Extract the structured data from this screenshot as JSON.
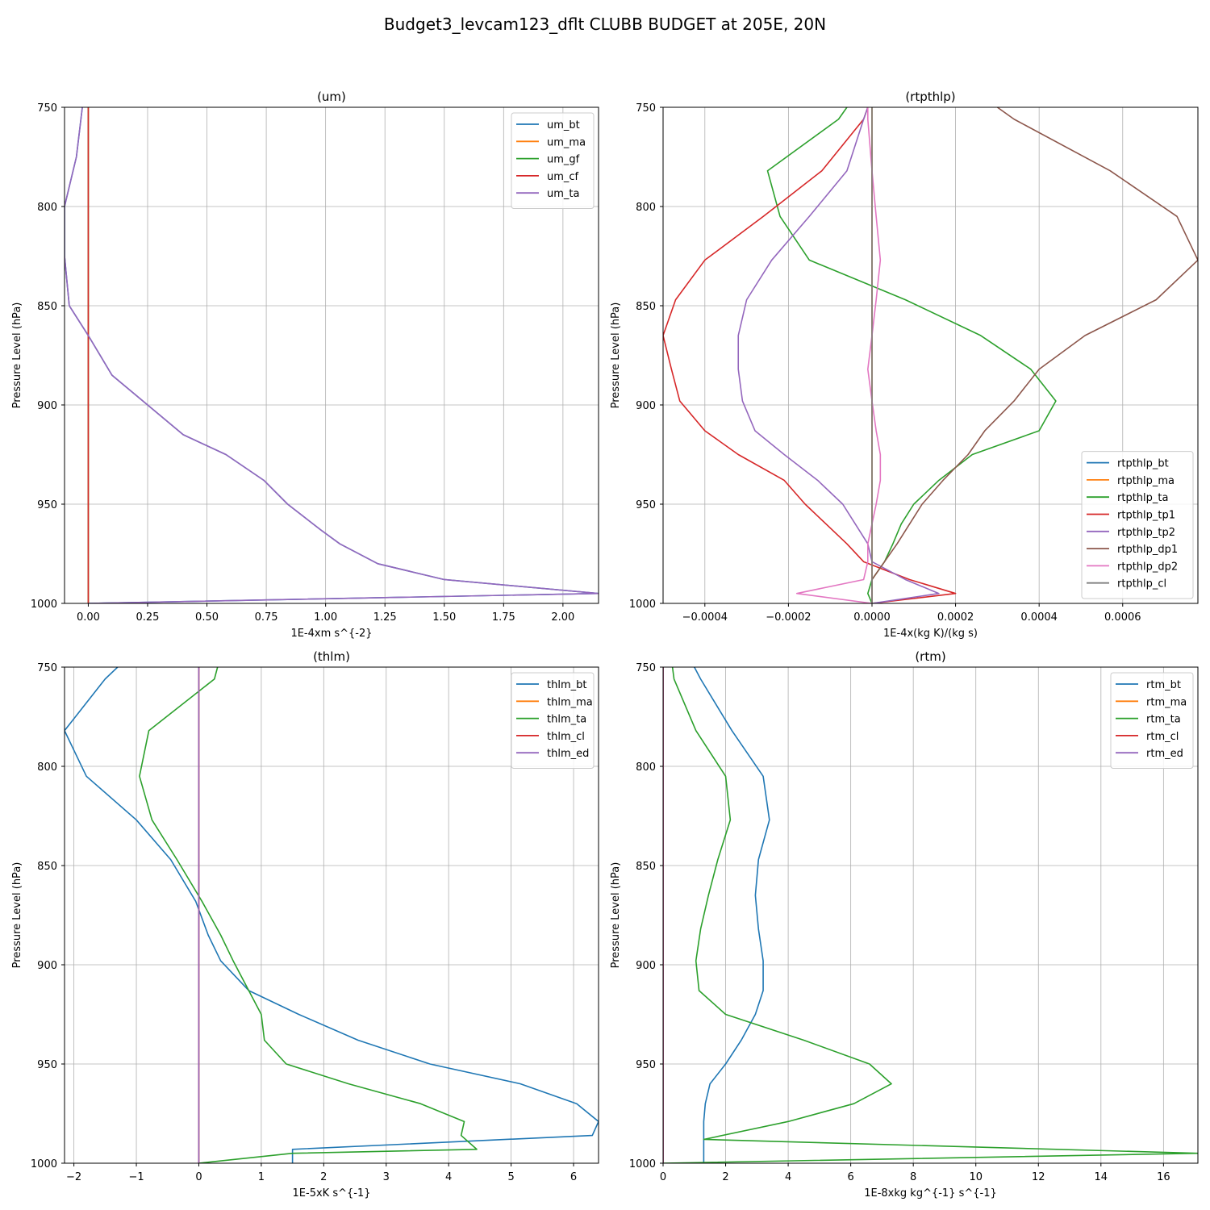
{
  "suptitle": "Budget3_levcam123_dflt CLUBB BUDGET at 205E, 20N",
  "chart_data": [
    {
      "type": "line",
      "title": "(um)",
      "xlabel": "1E-4xm s^{-2}",
      "ylabel": "Pressure Level (hPa)",
      "xlim": [
        -0.1,
        2.15
      ],
      "ylim": [
        1000,
        750
      ],
      "xticks": [
        0.0,
        0.25,
        0.5,
        0.75,
        1.0,
        1.25,
        1.5,
        1.75,
        2.0
      ],
      "xtick_labels": [
        "0.00",
        "0.25",
        "0.50",
        "0.75",
        "1.00",
        "1.25",
        "1.50",
        "1.75",
        "2.00"
      ],
      "yticks": [
        750,
        800,
        850,
        900,
        950,
        1000
      ],
      "grid": true,
      "legend_position": "top-right",
      "levels": [
        745,
        775,
        800,
        825,
        850,
        865,
        885,
        900,
        915,
        925,
        938,
        950,
        963,
        970,
        980,
        988,
        995,
        1000
      ],
      "series": [
        {
          "name": "um_bt",
          "color": "#1f77b4",
          "values": [
            -0.02,
            -0.05,
            -0.1,
            -0.1,
            -0.08,
            0.0,
            0.1,
            0.25,
            0.4,
            0.58,
            0.74,
            0.84,
            0.98,
            1.06,
            1.22,
            1.5,
            2.15,
            0.0
          ]
        },
        {
          "name": "um_ma",
          "color": "#ff7f0e",
          "values": [
            0,
            0,
            0,
            0,
            0,
            0,
            0,
            0,
            0,
            0,
            0,
            0,
            0,
            0,
            0,
            0,
            0,
            0
          ]
        },
        {
          "name": "um_gf",
          "color": "#2ca02c",
          "values": [
            0,
            0,
            0,
            0,
            0,
            0,
            0,
            0,
            0,
            0,
            0,
            0,
            0,
            0,
            0,
            0,
            0,
            0
          ]
        },
        {
          "name": "um_cf",
          "color": "#d62728",
          "values": [
            0,
            0,
            0,
            0,
            0,
            0,
            0,
            0,
            0,
            0,
            0,
            0,
            0,
            0,
            0,
            0,
            0,
            0
          ]
        },
        {
          "name": "um_ta",
          "color": "#9467bd",
          "values": [
            -0.02,
            -0.05,
            -0.1,
            -0.1,
            -0.08,
            0.0,
            0.1,
            0.25,
            0.4,
            0.58,
            0.74,
            0.84,
            0.98,
            1.06,
            1.22,
            1.5,
            2.15,
            0.0
          ]
        }
      ]
    },
    {
      "type": "line",
      "title": "(rtpthlp)",
      "xlabel": "1E-4x(kg K)/(kg s)",
      "ylabel": "Pressure Level (hPa)",
      "xlim": [
        -0.0005,
        0.00078
      ],
      "ylim": [
        1000,
        750
      ],
      "xticks": [
        -0.0004,
        -0.0002,
        0.0,
        0.0002,
        0.0004,
        0.0006
      ],
      "xtick_labels": [
        "−0.0004",
        "−0.0002",
        "0.0000",
        "0.0002",
        "0.0004",
        "0.0006"
      ],
      "yticks": [
        750,
        800,
        850,
        900,
        950,
        1000
      ],
      "grid": true,
      "legend_position": "bottom-right",
      "levels": [
        750,
        756,
        782,
        805,
        827,
        847,
        865,
        882,
        898,
        913,
        925,
        938,
        950,
        960,
        970,
        979,
        988,
        995,
        1000
      ],
      "series": [
        {
          "name": "rtpthlp_bt",
          "color": "#1f77b4",
          "values": [
            0,
            0,
            0,
            0,
            0,
            0,
            0,
            0,
            0,
            0,
            0,
            0,
            0,
            0,
            0,
            0,
            0,
            0,
            0
          ]
        },
        {
          "name": "rtpthlp_ma",
          "color": "#ff7f0e",
          "values": [
            0,
            0,
            0,
            0,
            0,
            0,
            0,
            0,
            0,
            0,
            0,
            0,
            0,
            0,
            0,
            0,
            0,
            0,
            0
          ]
        },
        {
          "name": "rtpthlp_ta",
          "color": "#2ca02c",
          "values": [
            -6e-05,
            -8e-05,
            -0.00025,
            -0.00022,
            -0.00015,
            8e-05,
            0.00026,
            0.00038,
            0.00044,
            0.0004,
            0.00024,
            0.00016,
            0.0001,
            7e-05,
            5e-05,
            3e-05,
            0.0,
            -1e-05,
            0.0
          ]
        },
        {
          "name": "rtpthlp_tp1",
          "color": "#d62728",
          "values": [
            -1e-05,
            -2e-05,
            -0.00012,
            -0.00026,
            -0.0004,
            -0.00047,
            -0.0005,
            -0.00048,
            -0.00046,
            -0.0004,
            -0.00032,
            -0.00021,
            -0.00016,
            -0.00011,
            -6e-05,
            -2e-05,
            9e-05,
            0.0002,
            0.0
          ]
        },
        {
          "name": "rtpthlp_tp2",
          "color": "#9467bd",
          "values": [
            -1e-05,
            -2e-05,
            -6e-05,
            -0.00015,
            -0.00024,
            -0.0003,
            -0.00032,
            -0.00032,
            -0.00031,
            -0.00028,
            -0.00021,
            -0.00013,
            -7e-05,
            -4e-05,
            -1e-05,
            0.0,
            8e-05,
            0.00016,
            0.0
          ]
        },
        {
          "name": "rtpthlp_dp1",
          "color": "#8c564b",
          "values": [
            0.0003,
            0.00034,
            0.00057,
            0.00073,
            0.00078,
            0.00068,
            0.00051,
            0.0004,
            0.00034,
            0.00027,
            0.00023,
            0.00017,
            0.00012,
            9e-05,
            6e-05,
            3e-05,
            0.0,
            0.0,
            0.0
          ]
        },
        {
          "name": "rtpthlp_dp2",
          "color": "#e377c2",
          "values": [
            -1e-05,
            -1e-05,
            0.0,
            1e-05,
            2e-05,
            1e-05,
            0.0,
            -1e-05,
            0.0,
            1e-05,
            2e-05,
            2e-05,
            1e-05,
            0.0,
            -1e-05,
            -1e-05,
            -2e-05,
            -0.00018,
            0.0
          ]
        },
        {
          "name": "rtpthlp_cl",
          "color": "#7f7f7f",
          "values": [
            0,
            0,
            0,
            0,
            0,
            0,
            0,
            0,
            0,
            0,
            0,
            0,
            0,
            0,
            0,
            0,
            0,
            0,
            0
          ]
        }
      ]
    },
    {
      "type": "line",
      "title": "(thlm)",
      "xlabel": "1E-5xK s^{-1}",
      "ylabel": "Pressure Level (hPa)",
      "xlim": [
        -2.15,
        6.4
      ],
      "ylim": [
        1000,
        750
      ],
      "xticks": [
        -2,
        -1,
        0,
        1,
        2,
        3,
        4,
        5,
        6
      ],
      "xtick_labels": [
        "−2",
        "−1",
        "0",
        "1",
        "2",
        "3",
        "4",
        "5",
        "6"
      ],
      "yticks": [
        750,
        800,
        850,
        900,
        950,
        1000
      ],
      "grid": true,
      "legend_position": "top-right",
      "levels": [
        750,
        756,
        782,
        805,
        827,
        847,
        868,
        885,
        898,
        913,
        925,
        938,
        950,
        960,
        970,
        979,
        986,
        993,
        995,
        1000
      ],
      "series": [
        {
          "name": "thlm_bt",
          "color": "#1f77b4",
          "values": [
            -1.3,
            -1.5,
            -2.15,
            -1.8,
            -1.0,
            -0.45,
            -0.05,
            0.15,
            0.35,
            0.8,
            1.6,
            2.55,
            3.7,
            5.15,
            6.05,
            6.4,
            6.3,
            1.5,
            1.5,
            1.5
          ]
        },
        {
          "name": "thlm_ma",
          "color": "#ff7f0e",
          "values": [
            0,
            0,
            0,
            0,
            0,
            0,
            0,
            0,
            0,
            0,
            0,
            0,
            0,
            0,
            0,
            0,
            0,
            0,
            0,
            0
          ]
        },
        {
          "name": "thlm_ta",
          "color": "#2ca02c",
          "values": [
            0.3,
            0.25,
            -0.8,
            -0.95,
            -0.75,
            -0.35,
            0.05,
            0.35,
            0.55,
            0.8,
            1.0,
            1.05,
            1.4,
            2.4,
            3.55,
            4.25,
            4.2,
            4.45,
            1.5,
            0.0
          ]
        },
        {
          "name": "thlm_cl",
          "color": "#d62728",
          "values": [
            0,
            0,
            0,
            0,
            0,
            0,
            0,
            0,
            0,
            0,
            0,
            0,
            0,
            0,
            0,
            0,
            0,
            0,
            0,
            0
          ]
        },
        {
          "name": "thlm_ed",
          "color": "#9467bd",
          "values": [
            0,
            0,
            0,
            0,
            0,
            0,
            0,
            0,
            0,
            0,
            0,
            0,
            0,
            0,
            0,
            0,
            0,
            0,
            0,
            0
          ]
        }
      ]
    },
    {
      "type": "line",
      "title": "(rtm)",
      "xlabel": "1E-8xkg kg^{-1} s^{-1}",
      "ylabel": "Pressure Level (hPa)",
      "xlim": [
        0,
        17.1
      ],
      "ylim": [
        1000,
        750
      ],
      "xticks": [
        0,
        2,
        4,
        6,
        8,
        10,
        12,
        14,
        16
      ],
      "xtick_labels": [
        "0",
        "2",
        "4",
        "6",
        "8",
        "10",
        "12",
        "14",
        "16"
      ],
      "yticks": [
        750,
        800,
        850,
        900,
        950,
        1000
      ],
      "grid": true,
      "legend_position": "top-right",
      "levels": [
        750,
        756,
        782,
        805,
        827,
        847,
        865,
        882,
        898,
        913,
        925,
        938,
        950,
        960,
        970,
        979,
        988,
        995,
        1000
      ],
      "series": [
        {
          "name": "rtm_bt",
          "color": "#1f77b4",
          "values": [
            1.0,
            1.2,
            2.2,
            3.2,
            3.4,
            3.05,
            2.95,
            3.05,
            3.2,
            3.2,
            2.95,
            2.5,
            2.0,
            1.5,
            1.35,
            1.3,
            1.3,
            1.3,
            1.3
          ]
        },
        {
          "name": "rtm_ma",
          "color": "#ff7f0e",
          "values": [
            0,
            0,
            0,
            0,
            0,
            0,
            0,
            0,
            0,
            0,
            0,
            0,
            0,
            0,
            0,
            0,
            0,
            0,
            0
          ]
        },
        {
          "name": "rtm_ta",
          "color": "#2ca02c",
          "values": [
            0.3,
            0.35,
            1.05,
            2.0,
            2.15,
            1.75,
            1.45,
            1.2,
            1.05,
            1.15,
            2.0,
            4.5,
            6.6,
            7.3,
            6.1,
            4.0,
            1.3,
            17.1,
            0.0
          ]
        },
        {
          "name": "rtm_cl",
          "color": "#d62728",
          "values": [
            0,
            0,
            0,
            0,
            0,
            0,
            0,
            0,
            0,
            0,
            0,
            0,
            0,
            0,
            0,
            0,
            0,
            0,
            0
          ]
        },
        {
          "name": "rtm_ed",
          "color": "#9467bd",
          "values": [
            0,
            0,
            0,
            0,
            0,
            0,
            0,
            0,
            0,
            0,
            0,
            0,
            0,
            0,
            0,
            0,
            0,
            0,
            0
          ]
        }
      ]
    }
  ]
}
